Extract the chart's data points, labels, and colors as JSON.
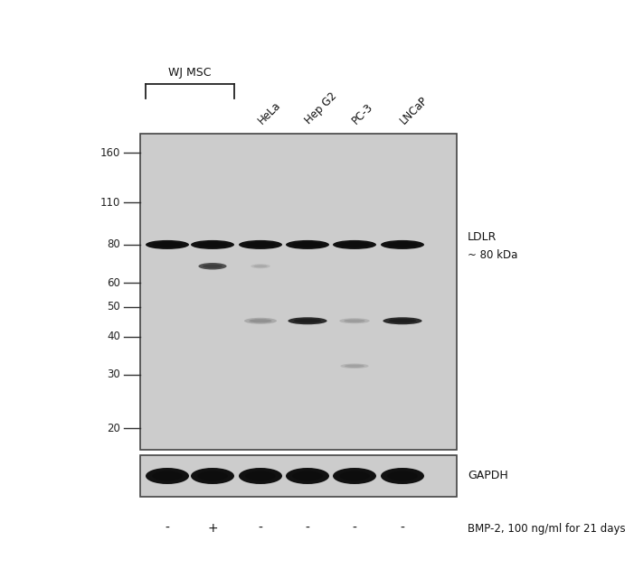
{
  "fig_width": 6.5,
  "fig_height": 6.1,
  "bg_color": "#ffffff",
  "gel_bg": "#cccccc",
  "band_color_dark": "#111111",
  "band_color_medium": "#444444",
  "band_color_light": "#999999",
  "band_color_vlight": "#bbbbbb",
  "mw_markers": [
    160,
    110,
    80,
    60,
    50,
    40,
    30,
    20
  ],
  "lane_labels": [
    "HeLa",
    "Hep G2",
    "PC-3",
    "LNCaP"
  ],
  "wj_msc_label": "WJ MSC",
  "bmp2_signs": [
    "-",
    "+",
    "-",
    "-",
    "-",
    "-"
  ],
  "ldlr_label": "LDLR",
  "ldlr_kda": "~ 80 kDa",
  "gapdh_label": "GAPDH",
  "bmp2_text": "BMP-2, 100 ng/ml for 21 days"
}
